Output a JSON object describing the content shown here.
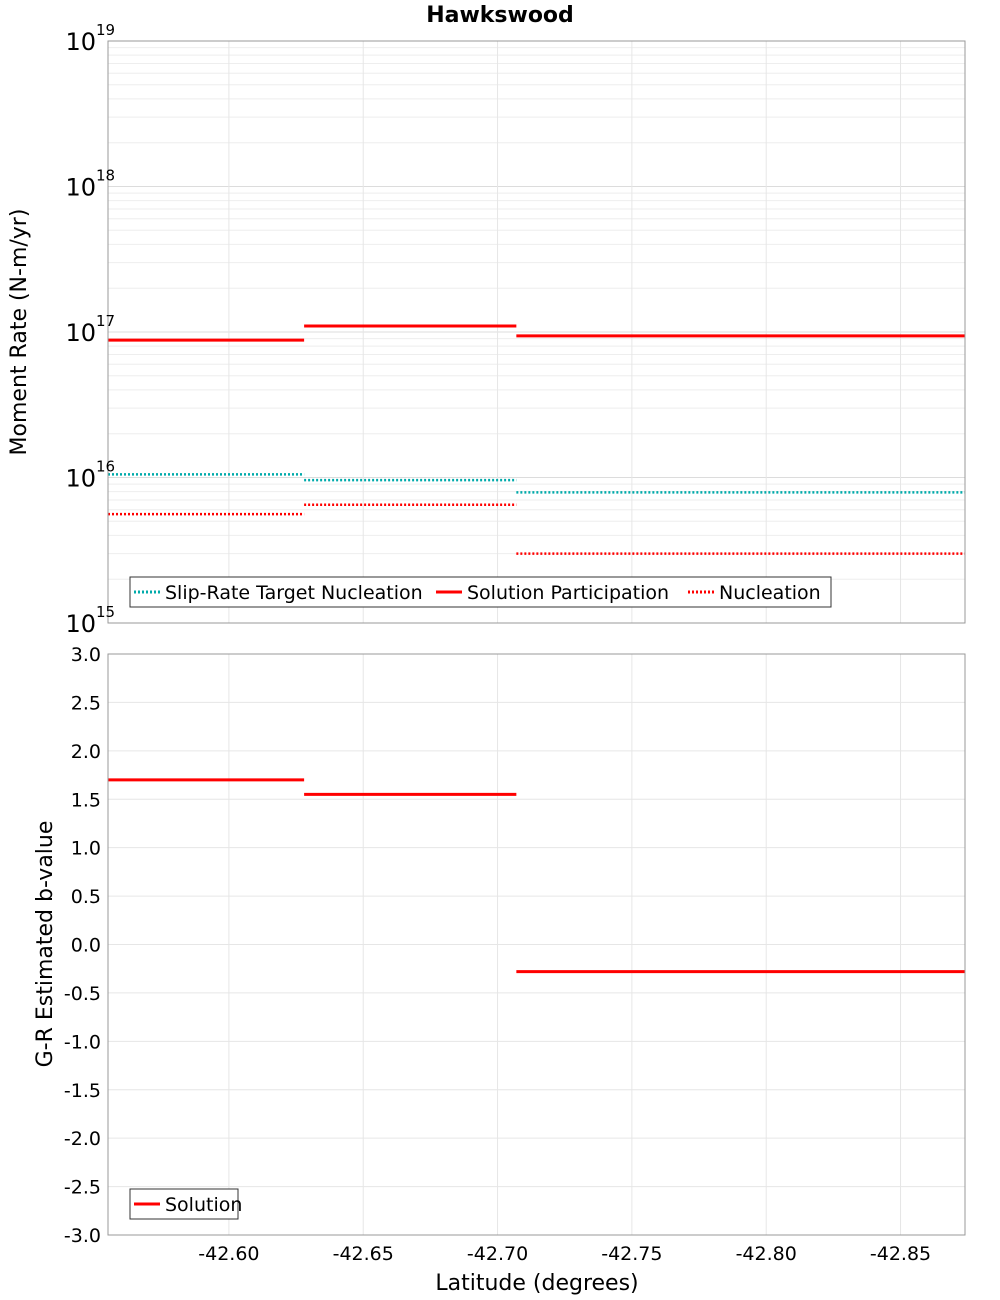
{
  "chart_data": [
    {
      "type": "line",
      "subtype": "step",
      "title": "Hawkswood",
      "xlabel": "",
      "ylabel": "Moment Rate (N-m/yr)",
      "yscale": "log",
      "ylim": [
        1000000000000000.0,
        1e+19
      ],
      "xlim": [
        -42.555,
        -42.874
      ],
      "ytick_exponents": [
        "15",
        "16",
        "17",
        "18",
        "19"
      ],
      "ytick_base": "10",
      "grid": true,
      "legend_position": "bottom-left",
      "series": [
        {
          "name": "Slip-Rate Target Nucleation",
          "color": "#00aaaa",
          "style": "dotted",
          "segments": [
            {
              "x_start": -42.555,
              "x_end": -42.628,
              "y": 1.05e+16
            },
            {
              "x_start": -42.628,
              "x_end": -42.707,
              "y": 9600000000000000.0
            },
            {
              "x_start": -42.707,
              "x_end": -42.874,
              "y": 7900000000000000.0
            }
          ]
        },
        {
          "name": "Solution Participation",
          "color": "#ff0000",
          "style": "solid",
          "segments": [
            {
              "x_start": -42.555,
              "x_end": -42.628,
              "y": 8.8e+16
            },
            {
              "x_start": -42.628,
              "x_end": -42.707,
              "y": 1.1e+17
            },
            {
              "x_start": -42.707,
              "x_end": -42.874,
              "y": 9.4e+16
            }
          ]
        },
        {
          "name": "Nucleation",
          "color": "#ff0000",
          "style": "dotted",
          "segments": [
            {
              "x_start": -42.555,
              "x_end": -42.628,
              "y": 5600000000000000.0
            },
            {
              "x_start": -42.628,
              "x_end": -42.707,
              "y": 6500000000000000.0
            },
            {
              "x_start": -42.707,
              "x_end": -42.874,
              "y": 3000000000000000.0
            }
          ]
        }
      ]
    },
    {
      "type": "line",
      "subtype": "step",
      "title": "",
      "xlabel": "Latitude (degrees)",
      "ylabel": "G-R Estimated b-value",
      "ylim": [
        -3.0,
        3.0
      ],
      "xlim": [
        -42.555,
        -42.874
      ],
      "yticks": [
        "3.0",
        "2.5",
        "2.0",
        "1.5",
        "1.0",
        "0.5",
        "0.0",
        "-0.5",
        "-1.0",
        "-1.5",
        "-2.0",
        "-2.5",
        "-3.0"
      ],
      "xticks": [
        "-42.60",
        "-42.65",
        "-42.70",
        "-42.75",
        "-42.80",
        "-42.85"
      ],
      "grid": true,
      "legend_position": "bottom-left",
      "series": [
        {
          "name": "Solution",
          "color": "#ff0000",
          "style": "solid",
          "segments": [
            {
              "x_start": -42.555,
              "x_end": -42.628,
              "y": 1.7
            },
            {
              "x_start": -42.628,
              "x_end": -42.707,
              "y": 1.55
            },
            {
              "x_start": -42.707,
              "x_end": -42.874,
              "y": -0.28
            }
          ]
        }
      ]
    }
  ]
}
